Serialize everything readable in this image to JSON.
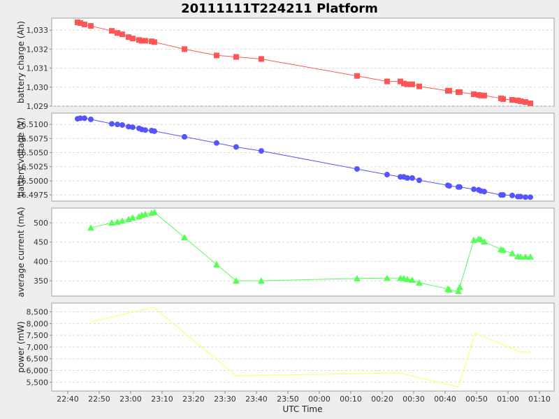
{
  "chart_data": {
    "type": "line",
    "title": "20111111T224211 Platform",
    "xlabel": "UTC Time",
    "xlim": [
      "22:34:54",
      "01:14:40"
    ],
    "xticks": [
      "22:40",
      "22:50",
      "23:00",
      "23:10",
      "23:20",
      "23:30",
      "23:40",
      "23:50",
      "00:00",
      "00:10",
      "00:20",
      "00:30",
      "00:40",
      "00:50",
      "01:00",
      "01:10"
    ],
    "times": [
      "22:43:07",
      "22:44:00",
      "22:45:20",
      "22:47:20",
      "22:54:00",
      "22:55:47",
      "22:57:20",
      "22:59:20",
      "23:00:40",
      "23:02:40",
      "23:03:33",
      "23:04:40",
      "23:06:40",
      "23:07:33",
      "23:17:07",
      "23:27:20",
      "23:33:33",
      "23:41:33",
      "00:12:00",
      "00:21:33",
      "00:25:47",
      "00:26:53",
      "00:28:00",
      "00:29:33",
      "00:31:47",
      "00:40:53",
      "00:41:20",
      "00:44:13",
      "00:44:40",
      "00:49:07",
      "00:50:40",
      "00:51:20",
      "00:52:27",
      "00:57:47",
      "00:58:27",
      "01:01:20",
      "01:03:07",
      "01:04:00",
      "01:05:33",
      "01:07:07"
    ],
    "panels": [
      {
        "name": "battery charge",
        "ylabel": "battery charge (Ah)",
        "color": "#ff5555",
        "marker": "square",
        "ylim": [
          1029.0,
          1033.63
        ],
        "yticks": [
          {
            "v": 1033,
            "label": "1,033"
          },
          {
            "v": 1032,
            "label": "1,032"
          },
          {
            "v": 1031,
            "label": "1,031"
          },
          {
            "v": 1030,
            "label": "1,030"
          },
          {
            "v": 1029,
            "label": "1,029"
          }
        ],
        "start_index": 0,
        "values": [
          1033.41,
          1033.37,
          1033.3,
          1033.22,
          1032.96,
          1032.85,
          1032.78,
          1032.63,
          1032.56,
          1032.48,
          1032.44,
          1032.44,
          1032.41,
          1032.37,
          1032.0,
          1031.67,
          1031.59,
          1031.48,
          1030.59,
          1030.3,
          1030.3,
          1030.19,
          1030.15,
          1030.15,
          1030.04,
          1029.81,
          1029.81,
          1029.74,
          1029.74,
          1029.63,
          1029.59,
          1029.56,
          1029.56,
          1029.41,
          1029.37,
          1029.33,
          1029.3,
          1029.26,
          1029.22,
          1029.15
        ]
      },
      {
        "name": "battery voltage",
        "ylabel": "battery voltage (V)",
        "color": "#5555ff",
        "marker": "circle",
        "ylim": [
          16.4964,
          16.512
        ],
        "yticks": [
          {
            "v": 16.51,
            "label": "16.5100"
          },
          {
            "v": 16.5075,
            "label": "16.5075"
          },
          {
            "v": 16.505,
            "label": "16.5050"
          },
          {
            "v": 16.5025,
            "label": "16.5025"
          },
          {
            "v": 16.5,
            "label": "16.5000"
          },
          {
            "v": 16.4975,
            "label": "16.4975"
          }
        ],
        "start_index": 0,
        "values": [
          16.511,
          16.5111,
          16.5111,
          16.5109,
          16.5101,
          16.51,
          16.5099,
          16.5096,
          16.5095,
          16.5093,
          16.5091,
          16.509,
          16.5089,
          16.5088,
          16.5078,
          16.5067,
          16.506,
          16.5053,
          16.5021,
          16.5011,
          16.5007,
          16.5007,
          16.5005,
          16.5005,
          16.5001,
          16.4992,
          16.4991,
          16.4989,
          16.4989,
          16.4985,
          16.4984,
          16.4982,
          16.4981,
          16.4975,
          16.4975,
          16.4974,
          16.4972,
          16.4972,
          16.4971,
          16.4971
        ]
      },
      {
        "name": "average current",
        "ylabel": "average current (mA)",
        "color": "#55ff55",
        "marker": "triangle",
        "ylim": [
          310.5,
          537.9
        ],
        "yticks": [
          {
            "v": 500,
            "label": "500"
          },
          {
            "v": 450,
            "label": "450"
          },
          {
            "v": 400,
            "label": "400"
          },
          {
            "v": 350,
            "label": "350"
          }
        ],
        "start_index": 3,
        "values": [
          487,
          500,
          502,
          505,
          509,
          513,
          516,
          520,
          522,
          525,
          527,
          462,
          392,
          350,
          350,
          356,
          357,
          357,
          356,
          354,
          352,
          345,
          329,
          327,
          323,
          334,
          455,
          458,
          457,
          451,
          431,
          429,
          421,
          413,
          412,
          412,
          412
        ]
      },
      {
        "name": "power",
        "ylabel": "power (mW)",
        "color": "#ffff55",
        "marker": "none",
        "ylim": [
          5122,
          8872
        ],
        "yticks": [
          {
            "v": 8500,
            "label": "8,500"
          },
          {
            "v": 8000,
            "label": "8,000"
          },
          {
            "v": 7500,
            "label": "7,500"
          },
          {
            "v": 7000,
            "label": "7,000"
          },
          {
            "v": 6500,
            "label": "6,500"
          },
          {
            "v": 6000,
            "label": "6,000"
          },
          {
            "v": 5500,
            "label": "5,500"
          }
        ],
        "times": [
          "22:47:20",
          "23:07:20",
          "23:33:33",
          "00:25:47",
          "00:31:47",
          "00:44:13",
          "00:49:33",
          "01:04:00",
          "01:07:07"
        ],
        "values": [
          8068,
          8693,
          5777,
          5896,
          5688,
          5301,
          7592,
          6789,
          6789
        ]
      }
    ]
  }
}
